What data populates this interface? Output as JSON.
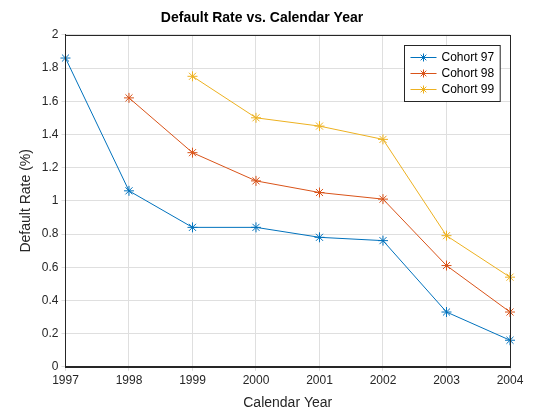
{
  "chart_data": {
    "type": "line",
    "title": "Default Rate vs. Calendar Year",
    "x_label": "Calendar Year",
    "y_label": "Default Rate (%)",
    "x": [
      1997,
      1998,
      1999,
      2000,
      2001,
      2002,
      2003,
      2004
    ],
    "series": [
      {
        "name": "Cohort 97",
        "color": "#0072bd",
        "marker": "star",
        "line_style": "solid",
        "values": [
          1.86,
          1.06,
          0.84,
          0.84,
          0.78,
          0.76,
          0.33,
          0.16
        ]
      },
      {
        "name": "Cohort 98",
        "color": "#d95319",
        "marker": "star",
        "line_style": "solid",
        "values": [
          null,
          1.62,
          1.29,
          1.12,
          1.05,
          1.01,
          0.61,
          0.33
        ]
      },
      {
        "name": "Cohort 99",
        "color": "#edb120",
        "marker": "star",
        "line_style": "solid",
        "values": [
          null,
          null,
          1.75,
          1.5,
          1.45,
          1.37,
          0.79,
          0.54
        ]
      }
    ],
    "xlim": [
      1997,
      2004
    ],
    "xticks": [
      1997,
      1998,
      1999,
      2000,
      2001,
      2002,
      2003,
      2004
    ],
    "ylim": [
      0,
      2
    ],
    "yticks": [
      0,
      0.2,
      0.4,
      0.6,
      0.8,
      1,
      1.2,
      1.4,
      1.6,
      1.8,
      2
    ],
    "grid": true,
    "legend": "northeast"
  }
}
